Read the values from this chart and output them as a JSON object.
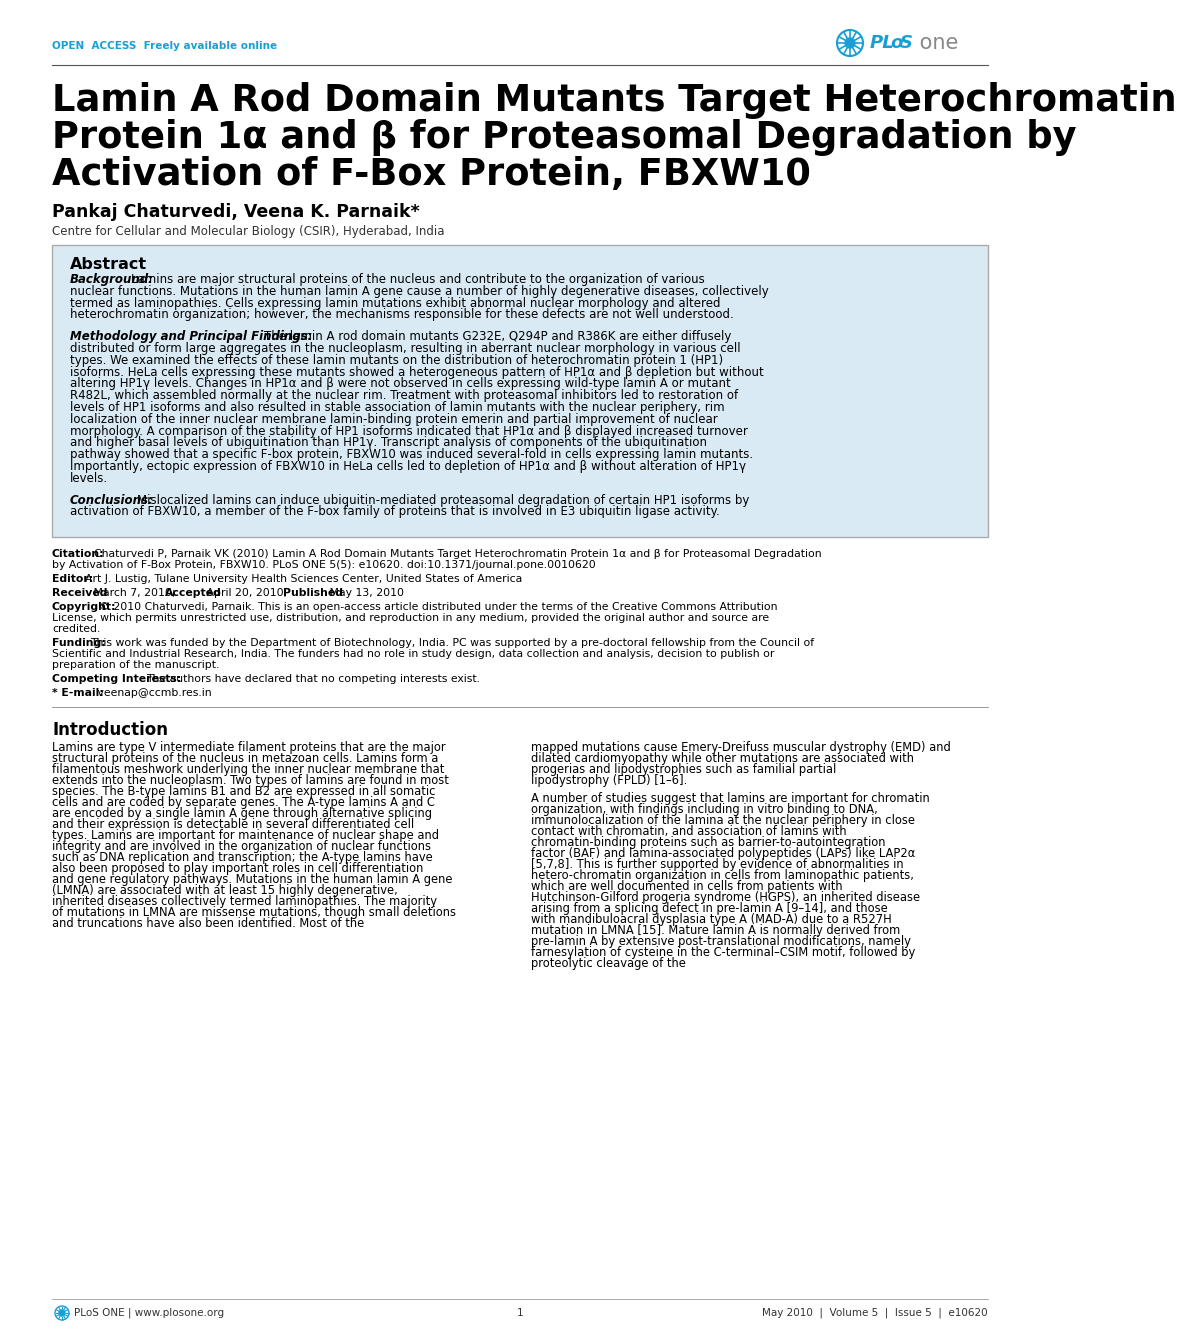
{
  "bg_color": "#ffffff",
  "open_access_text": "OPEN  ACCESS  Freely available online",
  "open_access_color": "#1a9fd4",
  "plos_color": "#1a9fd4",
  "title_line1": "Lamin A Rod Domain Mutants Target Heterochromatin",
  "title_line2": "Protein 1α and β for Proteasomal Degradation by",
  "title_line3": "Activation of F-Box Protein, FBXW10",
  "authors": "Pankaj Chaturvedi, Veena K. Parnaik*",
  "affiliation": "Centre for Cellular and Molecular Biology (CSIR), Hyderabad, India",
  "abstract_bg": "#daeaf5",
  "abstract_title": "Abstract",
  "background_label": "Background:",
  "background_text": "Lamins are major structural proteins of the nucleus and contribute to the organization of various nuclear functions. Mutations in the human lamin A gene cause a number of highly degenerative diseases, collectively termed as laminopathies. Cells expressing lamin mutations exhibit abnormal nuclear morphology and altered heterochromatin organization; however, the mechanisms responsible for these defects are not well understood.",
  "methodology_label": "Methodology and Principal Findings:",
  "methodology_text": "The lamin A rod domain mutants G232E, Q294P and R386K are either diffusely distributed or form large aggregates in the nucleoplasm, resulting in aberrant nuclear morphology in various cell types. We examined the effects of these lamin mutants on the distribution of heterochromatin protein 1 (HP1) isoforms. HeLa cells expressing these mutants showed a heterogeneous pattern of HP1α and β depletion but without altering HP1γ levels. Changes in HP1α and β were not observed in cells expressing wild-type lamin A or mutant R482L, which assembled normally at the nuclear rim. Treatment with proteasomal inhibitors led to restoration of levels of HP1 isoforms and also resulted in stable association of lamin mutants with the nuclear periphery, rim localization of the inner nuclear membrane lamin-binding protein emerin and partial improvement of nuclear morphology. A comparison of the stability of HP1 isoforms indicated that HP1α and β displayed increased turnover and higher basal levels of ubiquitination than HP1γ. Transcript analysis of components of the ubiquitination pathway showed that a specific F-box protein, FBXW10 was induced several-fold in cells expressing lamin mutants. Importantly, ectopic expression of FBXW10 in HeLa cells led to depletion of HP1α and β without alteration of HP1γ levels.",
  "conclusions_label": "Conclusions:",
  "conclusions_text": "Mislocalized lamins can induce ubiquitin-mediated proteasomal degradation of certain HP1 isoforms by activation of FBXW10, a member of the F-box family of proteins that is involved in E3 ubiquitin ligase activity.",
  "citation_label": "Citation:",
  "citation_text": "Chaturvedi P, Parnaik VK (2010) Lamin A Rod Domain Mutants Target Heterochromatin Protein 1α and β for Proteasomal Degradation by Activation of F-Box Protein, FBXW10. PLoS ONE 5(5): e10620. doi:10.1371/journal.pone.0010620",
  "editor_label": "Editor:",
  "editor_text": "Art J. Lustig, Tulane University Health Sciences Center, United States of America",
  "received_label": "Received",
  "received_text": "March 7, 2010;",
  "accepted_label": "Accepted",
  "accepted_text": "April 20, 2010;",
  "published_label": "Published",
  "published_text": "May 13, 2010",
  "copyright_label": "Copyright:",
  "copyright_text": "© 2010 Chaturvedi, Parnaik. This is an open-access article distributed under the terms of the Creative Commons Attribution License, which permits unrestricted use, distribution, and reproduction in any medium, provided the original author and source are credited.",
  "funding_label": "Funding:",
  "funding_text": "This work was funded by the Department of Biotechnology, India. PC was supported by a pre-doctoral fellowship from the Council of Scientific and Industrial Research, India. The funders had no role in study design, data collection and analysis, decision to publish or preparation of the manuscript.",
  "competing_label": "Competing Interests:",
  "competing_text": "The authors have declared that no competing interests exist.",
  "email_label": "* E-mail:",
  "email_text": "veenap@ccmb.res.in",
  "intro_title": "Introduction",
  "intro_indent": "    ",
  "intro_col1_para1": "Lamins are type V intermediate filament proteins that are the major structural proteins of the nucleus in metazoan cells. Lamins form a filamentous meshwork underlying the inner nuclear membrane that extends into the nucleoplasm. Two types of lamins are found in most species. The B-type lamins B1 and B2 are expressed in all somatic cells and are coded by separate genes. The A-type lamins A and C are encoded by a single lamin A gene through alternative splicing and their expression is detectable in several differentiated cell types. Lamins are important for maintenance of nuclear shape and integrity and are involved in the organization of nuclear functions such as DNA replication and transcription; the A-type lamins have also been proposed to play important roles in cell differentiation and gene regulatory pathways. Mutations in the human lamin A gene (LMNA) are associated with at least 15 highly degenerative, inherited diseases collectively termed laminopathies. The majority of mutations in LMNA are missense mutations, though small deletions and truncations have also been identified. Most of the",
  "intro_col2_para1": "mapped mutations cause Emery-Dreifuss muscular dystrophy (EMD) and dilated cardiomyopathy while other mutations are associated with progerias and lipodystrophies such as familial partial lipodystrophy (FPLD) [1–6].",
  "intro_col2_para2": "A number of studies suggest that lamins are important for chromatin organization, with findings including in vitro binding to DNA, immunolocalization of the lamina at the nuclear periphery in close contact with chromatin, and association of lamins with chromatin-binding proteins such as barrier-to-autointegration factor (BAF) and lamina-associated polypeptides (LAPs) like LAP2α [5,7,8]. This is further supported by evidence of abnormalities in hetero-chromatin organization in cells from laminopathic patients, which are well documented in cells from patients with Hutchinson-Gilford progeria syndrome (HGPS), an inherited disease arising from a splicing defect in pre-lamin A [9–14], and those with mandibuloacral dysplasia type A (MAD-A) due to a R527H mutation in LMNA [15]. Mature lamin A is normally derived from pre-lamin A by extensive post-translational modifications, namely farnesylation of cysteine in the C-terminal–CSIM motif, followed by proteolytic cleavage of the",
  "footer_plos_text": "PLoS ONE | www.plosone.org",
  "footer_page": "1",
  "footer_date": "May 2010  |  Volume 5  |  Issue 5  |  e10620"
}
